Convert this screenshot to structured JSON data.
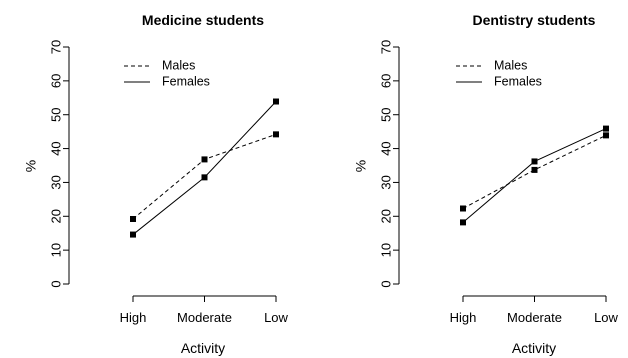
{
  "chart_data": [
    {
      "type": "line",
      "title": "Medicine students",
      "xlabel": "Activity",
      "ylabel": "%",
      "categories": [
        "High",
        "Moderate",
        "Low"
      ],
      "ylim": [
        0,
        70
      ],
      "yticks": [
        "0",
        "10",
        "20",
        "30",
        "40",
        "50",
        "60",
        "70"
      ],
      "grid": false,
      "legend": "top-left",
      "series": [
        {
          "name": "Males",
          "style": "dashed",
          "values": [
            19.2,
            36.8,
            44.2
          ]
        },
        {
          "name": "Females",
          "style": "solid",
          "values": [
            14.6,
            31.5,
            53.9
          ]
        }
      ]
    },
    {
      "type": "line",
      "title": "Dentistry students",
      "xlabel": "Activity",
      "ylabel": "%",
      "categories": [
        "High",
        "Moderate",
        "Low"
      ],
      "ylim": [
        0,
        70
      ],
      "yticks": [
        "0",
        "10",
        "20",
        "30",
        "40",
        "50",
        "60",
        "70"
      ],
      "grid": false,
      "legend": "top-left",
      "series": [
        {
          "name": "Males",
          "style": "dashed",
          "values": [
            22.3,
            33.7,
            43.9
          ]
        },
        {
          "name": "Females",
          "style": "solid",
          "values": [
            18.2,
            36.2,
            45.9
          ]
        }
      ]
    }
  ]
}
